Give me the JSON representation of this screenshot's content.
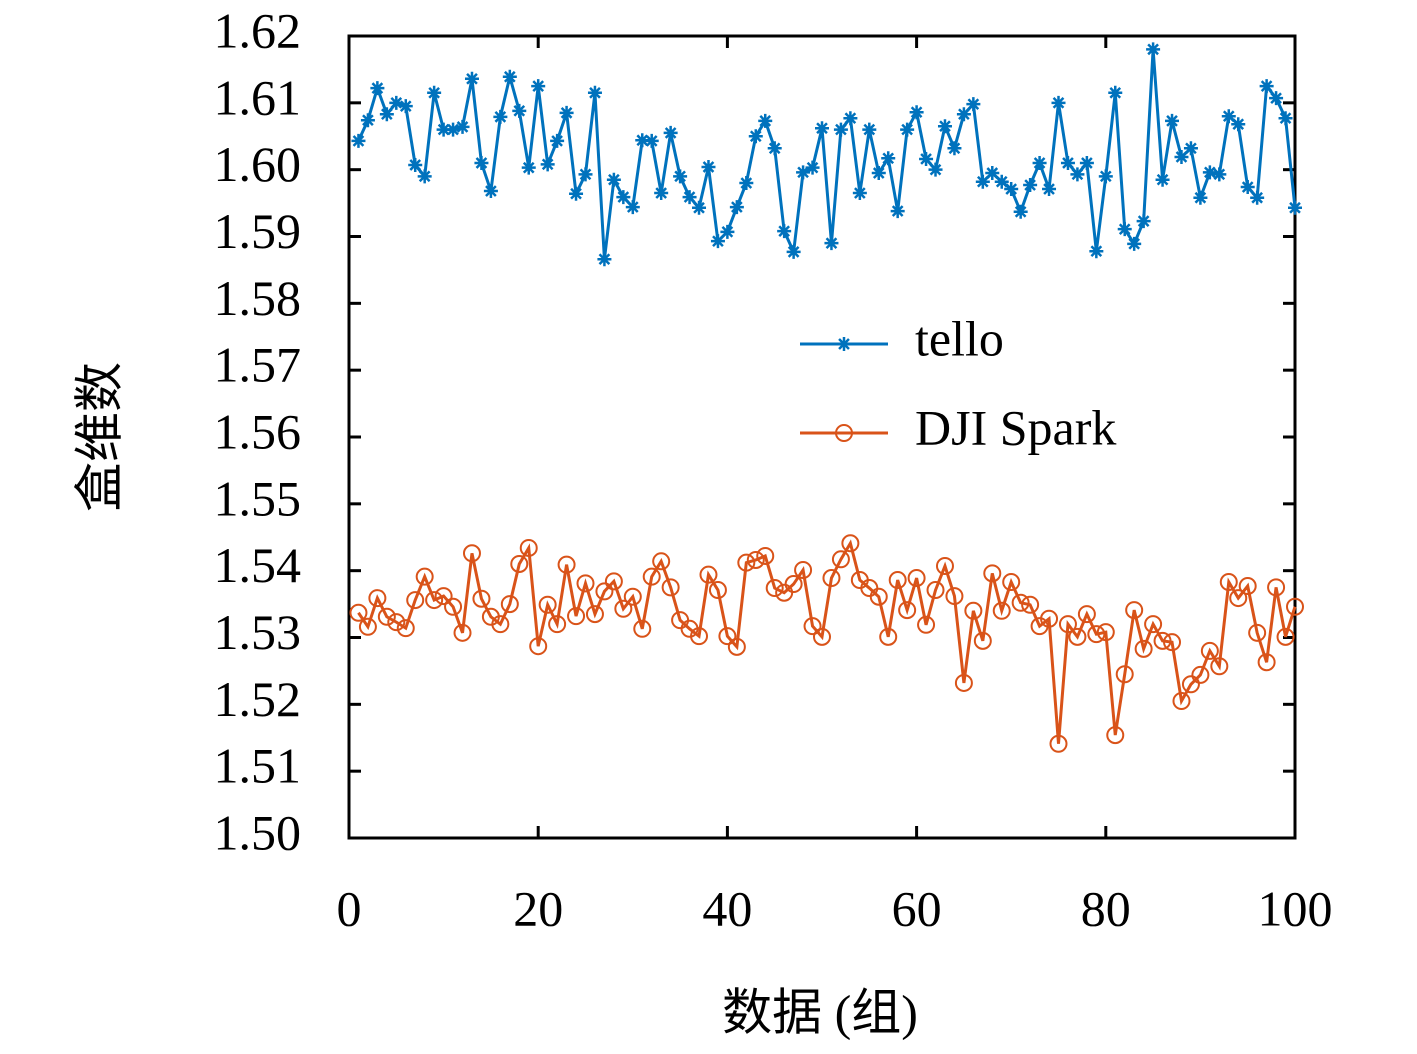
{
  "chart_data": {
    "type": "line",
    "xlabel": "数据 (组)",
    "ylabel": "盒维数",
    "x": [
      1,
      2,
      3,
      4,
      5,
      6,
      7,
      8,
      9,
      10,
      11,
      12,
      13,
      14,
      15,
      16,
      17,
      18,
      19,
      20,
      21,
      22,
      23,
      24,
      25,
      26,
      27,
      28,
      29,
      30,
      31,
      32,
      33,
      34,
      35,
      36,
      37,
      38,
      39,
      40,
      41,
      42,
      43,
      44,
      45,
      46,
      47,
      48,
      49,
      50,
      51,
      52,
      53,
      54,
      55,
      56,
      57,
      58,
      59,
      60,
      61,
      62,
      63,
      64,
      65,
      66,
      67,
      68,
      69,
      70,
      71,
      72,
      73,
      74,
      75,
      76,
      77,
      78,
      79,
      80,
      81,
      82,
      83,
      84,
      85,
      86,
      87,
      88,
      89,
      90,
      91,
      92,
      93,
      94,
      95,
      96,
      97,
      98,
      99,
      100
    ],
    "series": [
      {
        "name": "tello",
        "color": "#0072bd",
        "marker": "asterisk",
        "values": [
          1.6043,
          1.6074,
          1.6122,
          1.6083,
          1.61,
          1.6095,
          1.6007,
          1.599,
          1.6115,
          1.606,
          1.606,
          1.6064,
          1.6136,
          1.601,
          1.5968,
          1.6079,
          1.6139,
          1.6088,
          1.6003,
          1.6125,
          1.6008,
          1.6043,
          1.6085,
          1.5964,
          1.5993,
          1.6115,
          1.5866,
          1.5985,
          1.5959,
          1.5944,
          1.6044,
          1.6043,
          1.5965,
          1.6055,
          1.599,
          1.5959,
          1.5943,
          1.6004,
          1.5893,
          1.5907,
          1.5944,
          1.598,
          1.605,
          1.6073,
          1.6032,
          1.5908,
          1.5877,
          1.5996,
          1.6003,
          1.6062,
          1.589,
          1.606,
          1.6077,
          1.5965,
          1.606,
          1.5995,
          1.6017,
          1.5938,
          1.606,
          1.6086,
          1.6016,
          1.6,
          1.6065,
          1.6032,
          1.6083,
          1.6098,
          1.5982,
          1.5995,
          1.5982,
          1.5971,
          1.5937,
          1.5977,
          1.601,
          1.5971,
          1.61,
          1.601,
          1.5993,
          1.601,
          1.5878,
          1.599,
          1.6115,
          1.5911,
          1.5889,
          1.5923,
          1.618,
          1.5985,
          1.6073,
          1.6019,
          1.6032,
          1.5958,
          1.5996,
          1.5993,
          1.608,
          1.6068,
          1.5974,
          1.5958,
          1.6125,
          1.6107,
          1.6077,
          1.5943
        ]
      },
      {
        "name": "DJI Spark",
        "color": "#d95319",
        "marker": "circle",
        "values": [
          1.5337,
          1.5316,
          1.5359,
          1.5331,
          1.5323,
          1.5314,
          1.5356,
          1.5391,
          1.5356,
          1.5362,
          1.5346,
          1.5307,
          1.5426,
          1.5358,
          1.5331,
          1.532,
          1.535,
          1.541,
          1.5434,
          1.5287,
          1.5349,
          1.532,
          1.5409,
          1.5332,
          1.5381,
          1.5335,
          1.5369,
          1.5384,
          1.5343,
          1.5361,
          1.5313,
          1.5391,
          1.5414,
          1.5375,
          1.5326,
          1.5313,
          1.5302,
          1.5394,
          1.5371,
          1.5302,
          1.5286,
          1.5412,
          1.5416,
          1.5422,
          1.5374,
          1.5367,
          1.538,
          1.5401,
          1.5317,
          1.5301,
          1.5389,
          1.5417,
          1.5441,
          1.5386,
          1.5374,
          1.5361,
          1.5301,
          1.5386,
          1.5341,
          1.5389,
          1.5319,
          1.5371,
          1.5407,
          1.5362,
          1.5232,
          1.534,
          1.5295,
          1.5396,
          1.534,
          1.5383,
          1.5352,
          1.5349,
          1.5317,
          1.5328,
          1.5141,
          1.532,
          1.5301,
          1.5335,
          1.5305,
          1.5308,
          1.5154,
          1.5245,
          1.5341,
          1.5283,
          1.532,
          1.5295,
          1.5293,
          1.5205,
          1.523,
          1.5244,
          1.528,
          1.5257,
          1.5383,
          1.5359,
          1.5377,
          1.5307,
          1.5263,
          1.5375,
          1.5301,
          1.5346
        ]
      }
    ],
    "xlim": [
      0,
      100
    ],
    "xticks": [
      0,
      20,
      40,
      60,
      80,
      100
    ],
    "ylim": [
      1.5,
      1.62
    ],
    "yticks": [
      {
        "value": 1.5,
        "label": "1.50"
      },
      1.51,
      1.52,
      1.53,
      1.54,
      1.55,
      1.56,
      1.57,
      1.58,
      1.59,
      {
        "value": 1.6,
        "label": "1.60"
      },
      1.61,
      1.62
    ],
    "grid": false,
    "legend": "right"
  }
}
